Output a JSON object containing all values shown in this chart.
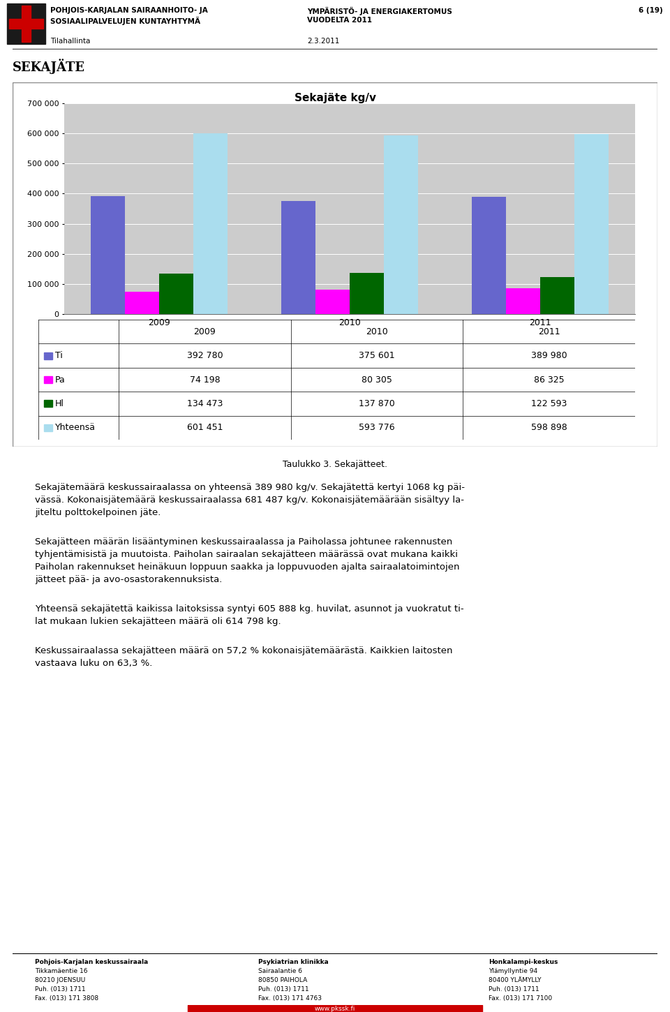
{
  "title": "Sekajäte kg/v",
  "years": [
    "2009",
    "2010",
    "2011"
  ],
  "series": {
    "Ti": [
      392780,
      375601,
      389980
    ],
    "Pa": [
      74198,
      80305,
      86325
    ],
    "Hl": [
      134473,
      137870,
      122593
    ],
    "Yhteensä": [
      601451,
      593776,
      598898
    ]
  },
  "colors": {
    "Ti": "#6666CC",
    "Pa": "#FF00FF",
    "Hl": "#006600",
    "Yhteensä": "#AADDEE"
  },
  "ylim": [
    0,
    700000
  ],
  "yticks": [
    0,
    100000,
    200000,
    300000,
    400000,
    500000,
    600000,
    700000
  ],
  "ytick_labels": [
    "0",
    "100 000",
    "200 000",
    "300 000",
    "400 000",
    "500 000",
    "600 000",
    "700 000"
  ],
  "header_left1": "POHJOIS-KARJALAN SAIRAANHOITO- JA",
  "header_left2": "SOSIAALIPALVELUJEN KUNTAYHTYMÄ",
  "header_left3": "Tilahallinta",
  "header_center1": "YMPÄRISTÖ- JA ENERGIAKERTOMUS",
  "header_center2": "VUODELTA 2011",
  "header_center3": "2.3.2011",
  "header_right": "6 (19)",
  "section_title": "Sekajäte",
  "caption": "Taulukko 3. Sekajätteet.",
  "paragraph1": "Sekajätemäärä keskussairaalassa on yhteensä 389 980 kg/v. Sekajätettä kertyi 1068 kg päi-\nvässä. Kokonaisjätemäärä keskussairaalassa 681 487 kg/v. Kokonaisjätemäärään sisältyy la-\njiteltu polttokelpoinen jäte.",
  "paragraph2": "Sekajätteen määrän lisääntyminen keskussairaalassa ja Paiholassa johtunee rakennusten\ntyhjentämisistä ja muutoista. Paiholan sairaalan sekajätteen määrässä ovat mukana kaikki\nPaiholan rakennukset heinäkuun loppuun saakka ja loppuvuoden ajalta sairaalatoimintojen\njätteet pää- ja avo-osastorakennuksista.",
  "paragraph3": "Yhteensä sekajätettä kaikissa laitoksissa syntyi 605 888 kg. huvilat, asunnot ja vuokratut ti-\nlat mukaan lukien sekajätteen määrä oli 614 798 kg.",
  "paragraph4": "Keskussairaalassa sekajätteen määrä on 57,2 % kokonaisjätemäärästä. Kaikkien laitosten\nvastaava luku on 63,3 %.",
  "footer_col1": [
    "Pohjois-Karjalan keskussairaala",
    "Tikkamäentie 16",
    "80210 JOENSUU",
    "Puh. (013) 1711",
    "Fax. (013) 171 3808"
  ],
  "footer_col2": [
    "Psykiatrian klinikka",
    "Sairaalantie 6",
    "80850 PAIHOLA",
    "Puh. (013) 1711",
    "Fax. (013) 171 4763"
  ],
  "footer_col3": [
    "Honkalampi-keskus",
    "Ylämyllyntie 94",
    "80400 YLÄMYLLY",
    "Puh. (013) 1711",
    "Fax. (013) 171 7100"
  ],
  "footer_web": "www.pkssk.fi",
  "logo_color": "#CC0000",
  "bar_width": 0.18
}
